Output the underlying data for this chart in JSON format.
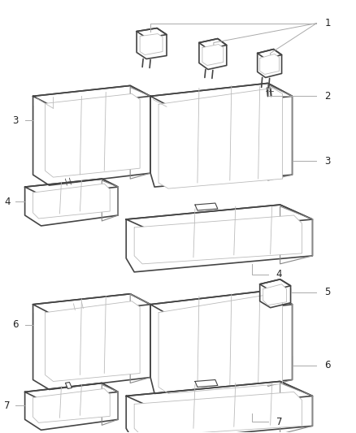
{
  "bg_color": "#ffffff",
  "line_color": "#444444",
  "mid_line_color": "#888888",
  "light_line_color": "#bbbbbb",
  "lw_outer": 1.2,
  "lw_mid": 0.8,
  "lw_inner": 0.6,
  "label_fontsize": 8.5,
  "label_color": "#222222",
  "callout_color": "#aaaaaa",
  "callout_lw": 0.7
}
